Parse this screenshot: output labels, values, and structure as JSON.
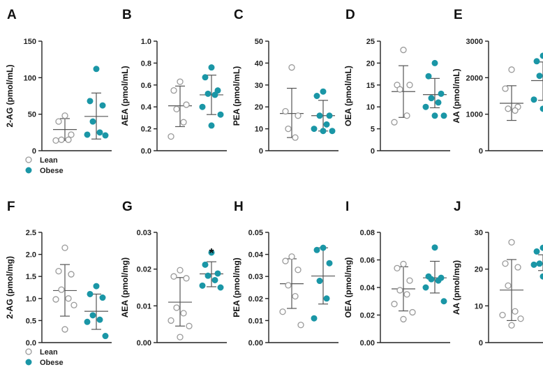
{
  "colors": {
    "lean_stroke": "#9a9a9a",
    "lean_fill": "#ffffff",
    "obese_fill": "#1a96a6",
    "axis": "#222222",
    "errorbar": "#555555"
  },
  "legend": {
    "lean": "Lean",
    "obese": "Obese"
  },
  "chart_data": [
    {
      "panel": "A",
      "type": "scatter",
      "ylabel": "2-AG (pmol/mL)",
      "ylim": [
        0,
        150
      ],
      "yticks": [
        "0",
        "50",
        "100",
        "150"
      ],
      "ytick_values": [
        0,
        50,
        100,
        150
      ],
      "series": [
        {
          "name": "Lean",
          "values": [
            48,
            40,
            22,
            15,
            15,
            14
          ],
          "mean": 29,
          "sd_low": 14,
          "sd_high": 44
        },
        {
          "name": "Obese",
          "values": [
            112,
            68,
            62,
            40,
            25,
            22,
            21
          ],
          "mean": 47,
          "sd_low": 16,
          "sd_high": 79
        }
      ]
    },
    {
      "panel": "B",
      "type": "scatter",
      "ylabel": "AEA (pmol/mL)",
      "ylim": [
        0,
        1.0
      ],
      "yticks": [
        "0.0",
        "0.2",
        "0.4",
        "0.6",
        "0.8",
        "1.0"
      ],
      "ytick_values": [
        0,
        0.2,
        0.4,
        0.6,
        0.8,
        1.0
      ],
      "series": [
        {
          "name": "Lean",
          "values": [
            0.63,
            0.55,
            0.42,
            0.38,
            0.26,
            0.13
          ],
          "mean": 0.41,
          "sd_low": 0.22,
          "sd_high": 0.59
        },
        {
          "name": "Obese",
          "values": [
            0.76,
            0.67,
            0.55,
            0.52,
            0.51,
            0.4,
            0.33,
            0.23
          ],
          "mean": 0.51,
          "sd_low": 0.33,
          "sd_high": 0.69
        }
      ]
    },
    {
      "panel": "C",
      "type": "scatter",
      "ylabel": "PEA (pmol/mL)",
      "ylim": [
        0,
        50
      ],
      "yticks": [
        "0",
        "10",
        "20",
        "30",
        "40",
        "50"
      ],
      "ytick_values": [
        0,
        10,
        20,
        30,
        40,
        50
      ],
      "series": [
        {
          "name": "Lean",
          "values": [
            38,
            18,
            16,
            10,
            6
          ],
          "mean": 17,
          "sd_low": 6,
          "sd_high": 28.5
        },
        {
          "name": "Obese",
          "values": [
            27,
            25,
            16,
            16,
            12,
            10,
            9,
            9
          ],
          "mean": 16,
          "sd_low": 9,
          "sd_high": 23
        }
      ]
    },
    {
      "panel": "D",
      "type": "scatter",
      "ylabel": "OEA (pmol/mL)",
      "ylim": [
        0,
        25
      ],
      "yticks": [
        "0",
        "5",
        "10",
        "15",
        "20",
        "25"
      ],
      "ytick_values": [
        0,
        5,
        10,
        15,
        20,
        25
      ],
      "series": [
        {
          "name": "Lean",
          "values": [
            23,
            15,
            15,
            14,
            8,
            6.5
          ],
          "mean": 13.5,
          "sd_low": 7.6,
          "sd_high": 19.4
        },
        {
          "name": "Obese",
          "values": [
            20,
            17,
            13,
            12,
            11,
            10,
            8,
            8
          ],
          "mean": 12.8,
          "sd_low": 9.8,
          "sd_high": 16.5
        }
      ]
    },
    {
      "panel": "E",
      "type": "scatter",
      "ylabel": "AA (pmol/mL)",
      "ylim": [
        0,
        3000
      ],
      "yticks": [
        "0",
        "1000",
        "2000",
        "3000"
      ],
      "ytick_values": [
        0,
        1000,
        2000,
        3000
      ],
      "series": [
        {
          "name": "Lean",
          "values": [
            2220,
            1700,
            1200,
            1150,
            1100
          ],
          "mean": 1300,
          "sd_low": 830,
          "sd_high": 1780
        },
        {
          "name": "Obese",
          "values": [
            2600,
            2450,
            2200,
            2050,
            1750,
            1400,
            1200,
            1150
          ],
          "mean": 1920,
          "sd_low": 1380,
          "sd_high": 2430
        }
      ]
    },
    {
      "panel": "F",
      "type": "scatter",
      "ylabel": "2-AG (pmol/mg)",
      "ylim": [
        0,
        2.5
      ],
      "yticks": [
        "0.0",
        "0.5",
        "1.0",
        "1.5",
        "2.0",
        "2.5"
      ],
      "ytick_values": [
        0,
        0.5,
        1.0,
        1.5,
        2.0,
        2.5
      ],
      "series": [
        {
          "name": "Lean",
          "values": [
            2.15,
            1.62,
            1.55,
            1.2,
            1.0,
            0.98,
            0.85,
            0.3
          ],
          "mean": 1.18,
          "sd_low": 0.6,
          "sd_high": 1.77
        },
        {
          "name": "Obese",
          "values": [
            1.28,
            1.1,
            1.02,
            0.62,
            0.52,
            0.47,
            0.15
          ],
          "mean": 0.71,
          "sd_low": 0.3,
          "sd_high": 1.1
        }
      ]
    },
    {
      "panel": "G",
      "type": "scatter",
      "ylabel": "AEA (pmol/mg)",
      "ylim": [
        0,
        0.03
      ],
      "yticks": [
        "0.00",
        "0.01",
        "0.02",
        "0.03"
      ],
      "ytick_values": [
        0,
        0.01,
        0.02,
        0.03
      ],
      "annotation": "*",
      "series": [
        {
          "name": "Lean",
          "values": [
            0.0197,
            0.018,
            0.0175,
            0.0095,
            0.008,
            0.006,
            0.0045,
            0.0015
          ],
          "mean": 0.011,
          "sd_low": 0.0045,
          "sd_high": 0.0177
        },
        {
          "name": "Obese",
          "values": [
            0.0245,
            0.0212,
            0.0188,
            0.0182,
            0.017,
            0.0155,
            0.015
          ],
          "mean": 0.0187,
          "sd_low": 0.0152,
          "sd_high": 0.022
        }
      ]
    },
    {
      "panel": "H",
      "type": "scatter",
      "ylabel": "PEA (pmol/mg)",
      "ylim": [
        0,
        0.05
      ],
      "yticks": [
        "0.00",
        "0.01",
        "0.02",
        "0.03",
        "0.04",
        "0.05"
      ],
      "ytick_values": [
        0,
        0.01,
        0.02,
        0.03,
        0.04,
        0.05
      ],
      "series": [
        {
          "name": "Lean",
          "values": [
            0.039,
            0.037,
            0.033,
            0.026,
            0.021,
            0.014,
            0.008
          ],
          "mean": 0.0267,
          "sd_low": 0.0155,
          "sd_high": 0.038
        },
        {
          "name": "Obese",
          "values": [
            0.043,
            0.042,
            0.036,
            0.028,
            0.02,
            0.011
          ],
          "mean": 0.0302,
          "sd_low": 0.0175,
          "sd_high": 0.043
        }
      ]
    },
    {
      "panel": "I",
      "type": "scatter",
      "ylabel": "OEA (pmol/mg)",
      "ylim": [
        0,
        0.08
      ],
      "yticks": [
        "0.00",
        "0.02",
        "0.04",
        "0.06",
        "0.08"
      ],
      "ytick_values": [
        0,
        0.02,
        0.04,
        0.06,
        0.08
      ],
      "series": [
        {
          "name": "Lean",
          "values": [
            0.057,
            0.054,
            0.045,
            0.038,
            0.035,
            0.028,
            0.022,
            0.017
          ],
          "mean": 0.039,
          "sd_low": 0.023,
          "sd_high": 0.055
        },
        {
          "name": "Obese",
          "values": [
            0.069,
            0.048,
            0.047,
            0.046,
            0.045,
            0.04,
            0.03
          ],
          "mean": 0.047,
          "sd_low": 0.036,
          "sd_high": 0.059
        }
      ]
    },
    {
      "panel": "J",
      "type": "scatter",
      "ylabel": "AA (pmol/mg)",
      "ylim": [
        0,
        30
      ],
      "yticks": [
        "0",
        "10",
        "20",
        "30"
      ],
      "ytick_values": [
        0,
        10,
        20,
        30
      ],
      "series": [
        {
          "name": "Lean",
          "values": [
            27.3,
            21.5,
            20.5,
            15.5,
            8.5,
            7.5,
            6.5,
            4.7
          ],
          "mean": 14.3,
          "sd_low": 6.0,
          "sd_high": 22.6
        },
        {
          "name": "Obese",
          "values": [
            25.8,
            24.8,
            23.5,
            21.5,
            21.3,
            21.2,
            18.8,
            18.0
          ],
          "mean": 21.5,
          "sd_low": 19.6,
          "sd_high": 23.9
        }
      ]
    }
  ]
}
